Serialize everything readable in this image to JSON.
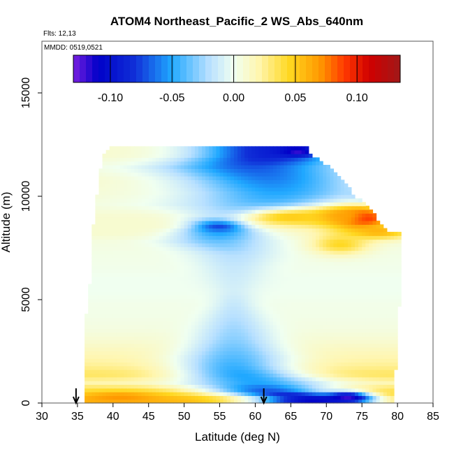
{
  "chart_data": {
    "type": "heatmap",
    "title": "ATOM4 Northeast_Pacific_2 WS_Abs_640nm",
    "flights_label": "Flts: 12,13",
    "dates_label": "MMDD: 0519,0521",
    "xlabel": "Latitude (deg N)",
    "ylabel": "Altitude (m)",
    "xlim": [
      30,
      85
    ],
    "ylim": [
      0,
      17500
    ],
    "x_ticks": [
      "30",
      "35",
      "40",
      "45",
      "50",
      "55",
      "60",
      "65",
      "70",
      "75",
      "80",
      "85"
    ],
    "x_tick_values": [
      30,
      35,
      40,
      45,
      50,
      55,
      60,
      65,
      70,
      75,
      80,
      85
    ],
    "y_ticks": [
      "0",
      "5000",
      "10000",
      "15000"
    ],
    "y_tick_values": [
      0,
      5000,
      10000,
      15000
    ],
    "colorbar": {
      "range": [
        -0.13,
        0.135
      ],
      "ticks": [
        "-0.10",
        "-0.05",
        "0.00",
        "0.05",
        "0.10"
      ],
      "tick_values": [
        -0.1,
        -0.05,
        0.0,
        0.05,
        0.1
      ],
      "stops": [
        {
          "v": -0.13,
          "c": "#7a1fe0"
        },
        {
          "v": -0.11,
          "c": "#0000c8"
        },
        {
          "v": -0.08,
          "c": "#1030d8"
        },
        {
          "v": -0.05,
          "c": "#20a8ff"
        },
        {
          "v": -0.02,
          "c": "#b8e0ff"
        },
        {
          "v": 0.0,
          "c": "#f0fff0"
        },
        {
          "v": 0.02,
          "c": "#fff6b0"
        },
        {
          "v": 0.045,
          "c": "#ffd820"
        },
        {
          "v": 0.07,
          "c": "#ff9800"
        },
        {
          "v": 0.09,
          "c": "#ff3800"
        },
        {
          "v": 0.11,
          "c": "#d00000"
        },
        {
          "v": 0.135,
          "c": "#a01818"
        }
      ]
    },
    "lat_range": [
      36,
      81
    ],
    "top_profile": [
      {
        "lat": 36,
        "alt": 9000
      },
      {
        "lat": 37,
        "alt": 10500
      },
      {
        "lat": 38.5,
        "alt": 12000
      },
      {
        "lat": 40,
        "alt": 12450
      },
      {
        "lat": 50,
        "alt": 12450
      },
      {
        "lat": 67,
        "alt": 12450
      },
      {
        "lat": 68,
        "alt": 12000
      },
      {
        "lat": 70,
        "alt": 11500
      },
      {
        "lat": 72,
        "alt": 11000
      },
      {
        "lat": 74,
        "alt": 10000
      },
      {
        "lat": 76,
        "alt": 9500
      },
      {
        "lat": 78,
        "alt": 8500
      },
      {
        "lat": 79,
        "alt": 8300
      },
      {
        "lat": 80.5,
        "alt": 8300
      },
      {
        "lat": 80.5,
        "alt": 7000
      }
    ],
    "left_edge": [
      {
        "alt": 0,
        "lat": 36
      },
      {
        "alt": 3500,
        "lat": 36
      },
      {
        "alt": 6500,
        "lat": 37
      },
      {
        "alt": 9000,
        "lat": 37.3
      },
      {
        "alt": 12000,
        "lat": 38.5
      }
    ],
    "right_edge": [
      {
        "alt": 0,
        "lat": 79.5
      },
      {
        "alt": 2000,
        "lat": 79.8
      },
      {
        "alt": 3000,
        "lat": 80
      },
      {
        "alt": 5000,
        "lat": 80.3
      },
      {
        "alt": 7000,
        "lat": 80.5
      }
    ],
    "bands": [
      {
        "alt": 0,
        "base": 0.06,
        "anom": -0.11,
        "center": 68,
        "width": 9
      },
      {
        "alt": 250,
        "base": 0.055,
        "anom": -0.1,
        "center": 68,
        "width": 9
      },
      {
        "alt": 600,
        "base": 0.04,
        "anom": -0.07,
        "center": 62,
        "width": 9
      },
      {
        "alt": 1000,
        "base": 0.02,
        "anom": -0.05,
        "center": 60,
        "width": 10
      },
      {
        "alt": 1400,
        "base": 0.035,
        "anom": -0.05,
        "center": 58,
        "width": 9
      },
      {
        "alt": 1800,
        "base": 0.025,
        "anom": -0.045,
        "center": 57,
        "width": 8
      },
      {
        "alt": 2200,
        "base": 0.02,
        "anom": -0.04,
        "center": 57,
        "width": 8
      },
      {
        "alt": 2600,
        "base": 0.015,
        "anom": -0.035,
        "center": 57,
        "width": 7
      },
      {
        "alt": 3000,
        "base": 0.01,
        "anom": -0.03,
        "center": 57,
        "width": 6
      },
      {
        "alt": 3600,
        "base": 0.005,
        "anom": -0.025,
        "center": 57,
        "width": 5
      },
      {
        "alt": 4200,
        "base": 0.003,
        "anom": -0.02,
        "center": 57,
        "width": 4
      },
      {
        "alt": 4800,
        "base": 0.002,
        "anom": -0.015,
        "center": 57,
        "width": 3
      },
      {
        "alt": 5400,
        "base": 0.0,
        "anom": -0.01,
        "center": 57,
        "width": 3
      },
      {
        "alt": 6000,
        "base": 0.0,
        "anom": -0.012,
        "center": 57,
        "width": 4
      },
      {
        "alt": 6600,
        "base": 0.002,
        "anom": -0.015,
        "center": 57,
        "width": 5
      },
      {
        "alt": 7200,
        "base": 0.003,
        "anom": -0.02,
        "center": 57,
        "width": 6
      },
      {
        "alt": 7800,
        "base": 0.005,
        "anom": -0.035,
        "center": 55,
        "width": 7
      },
      {
        "alt": 8200,
        "base": 0.01,
        "anom": -0.05,
        "center": 55,
        "width": 6
      },
      {
        "alt": 8600,
        "base": 0.01,
        "anom": -0.08,
        "center": 55,
        "width": 4
      },
      {
        "alt": 9000,
        "base": 0.01,
        "anom": -0.02,
        "center": 55,
        "width": 5
      },
      {
        "alt": 9600,
        "base": 0.005,
        "anom": -0.04,
        "center": 62,
        "width": 12
      },
      {
        "alt": 10200,
        "base": 0.008,
        "anom": -0.05,
        "center": 63,
        "width": 12
      },
      {
        "alt": 10800,
        "base": 0.01,
        "anom": -0.06,
        "center": 62,
        "width": 12
      },
      {
        "alt": 11400,
        "base": 0.005,
        "anom": -0.07,
        "center": 60,
        "width": 12
      },
      {
        "alt": 12000,
        "base": 0.01,
        "anom": -0.09,
        "center": 62,
        "width": 10
      }
    ],
    "hotspots": [
      {
        "lat": 75,
        "alt": 8950,
        "value": 0.12,
        "rlat": 3.5,
        "ralt": 500
      },
      {
        "lat": 72,
        "alt": 9050,
        "value": 0.07,
        "rlat": 5,
        "ralt": 500
      },
      {
        "lat": 65,
        "alt": 9000,
        "value": 0.05,
        "rlat": 6,
        "ralt": 400
      },
      {
        "lat": 77,
        "alt": 8300,
        "value": 0.06,
        "rlat": 5,
        "ralt": 350
      },
      {
        "lat": 72,
        "alt": 7700,
        "value": 0.045,
        "rlat": 4,
        "ralt": 500
      },
      {
        "lat": 78,
        "alt": 10100,
        "value": -0.07,
        "rlat": 3,
        "ralt": 300
      },
      {
        "lat": 41,
        "alt": 300,
        "value": 0.07,
        "rlat": 5,
        "ralt": 250
      },
      {
        "lat": 73,
        "alt": 300,
        "value": -0.12,
        "rlat": 3,
        "ralt": 250
      },
      {
        "lat": 66,
        "alt": 12200,
        "value": -0.12,
        "rlat": 2.5,
        "ralt": 250
      }
    ],
    "arrows": [
      {
        "lat": 34.8,
        "label": "flight marker"
      },
      {
        "lat": 61.2,
        "label": "flight marker"
      }
    ]
  }
}
